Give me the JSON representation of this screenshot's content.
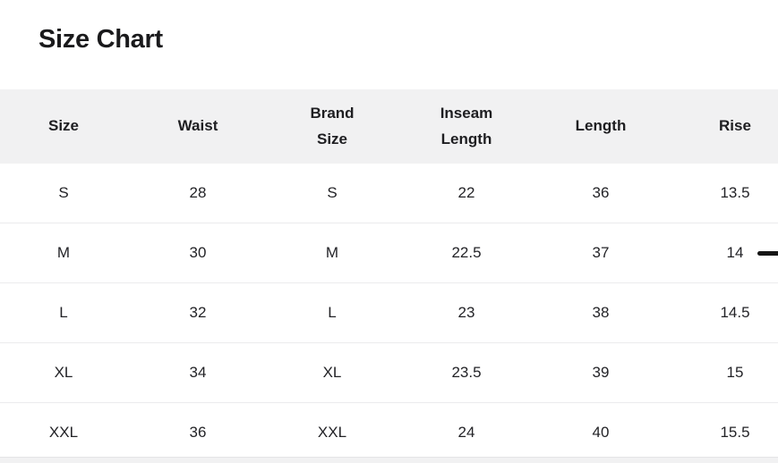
{
  "page": {
    "title": "Size Chart"
  },
  "table": {
    "columns": [
      "Size",
      "Waist",
      "Brand Size",
      "Inseam Length",
      "Length",
      "Rise"
    ],
    "rows": [
      [
        "S",
        "28",
        "S",
        "22",
        "36",
        "13.5"
      ],
      [
        "M",
        "30",
        "M",
        "22.5",
        "37",
        "14"
      ],
      [
        "L",
        "32",
        "L",
        "23",
        "38",
        "14.5"
      ],
      [
        "XL",
        "34",
        "XL",
        "23.5",
        "39",
        "15"
      ],
      [
        "XXL",
        "36",
        "XXL",
        "24",
        "40",
        "15.5"
      ]
    ]
  },
  "indicators": {
    "m_row_dash": "—"
  },
  "colors": {
    "header_bg": "#f1f1f2",
    "row_divider": "#ebebed",
    "cell_text": "#232327",
    "title_text": "#1a1a1c",
    "dash": "#161616"
  }
}
